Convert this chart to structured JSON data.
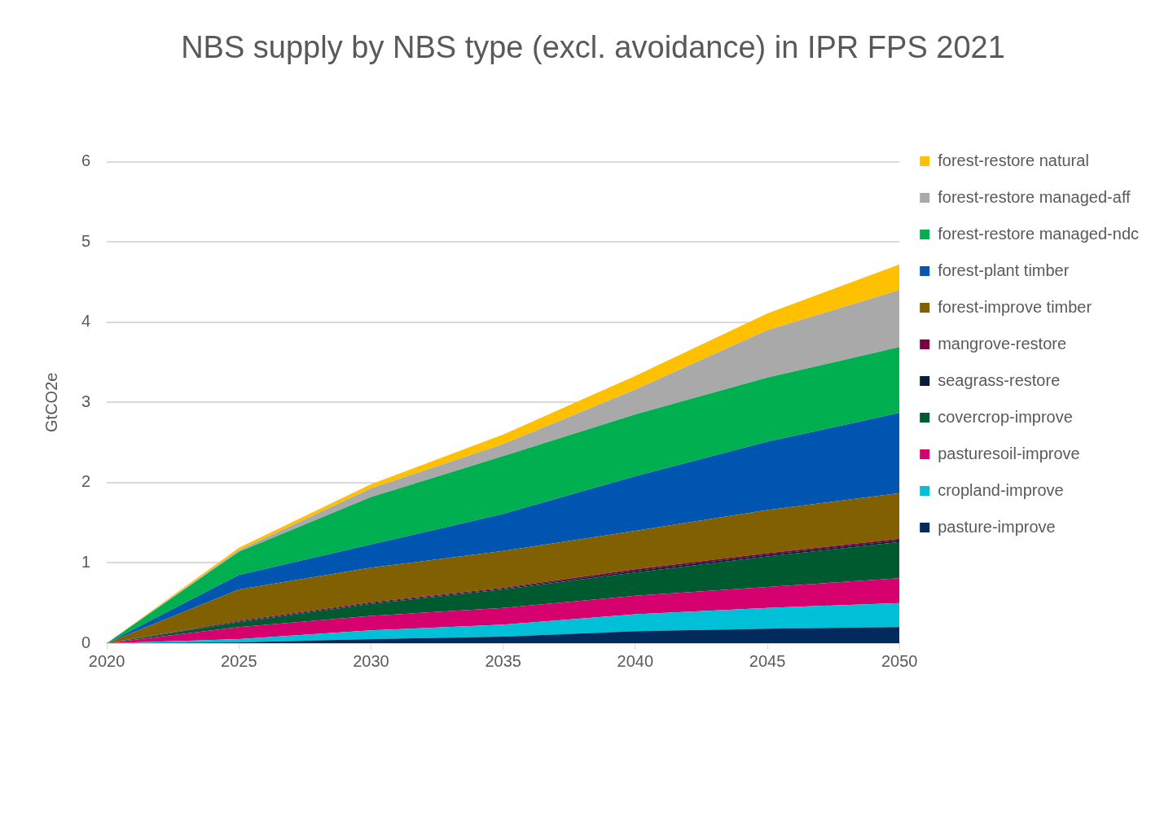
{
  "chart_data": {
    "type": "area",
    "title": "NBS supply by NBS type (excl. avoidance) in IPR FPS 2021",
    "ylabel": "GtCO2e",
    "stacked": true,
    "x": [
      2020,
      2025,
      2030,
      2035,
      2040,
      2045,
      2050
    ],
    "xlim": [
      2020,
      2050
    ],
    "xticks": [
      2020,
      2025,
      2030,
      2035,
      2040,
      2045,
      2050
    ],
    "ylim": [
      0,
      6
    ],
    "yticks": [
      0,
      1,
      2,
      3,
      4,
      5,
      6
    ],
    "grid": "y",
    "legend": "right",
    "marker": "none",
    "series": [
      {
        "name": "pasture-improve",
        "color": "#002b5c",
        "values": [
          0,
          0.01,
          0.05,
          0.08,
          0.15,
          0.18,
          0.2
        ]
      },
      {
        "name": "cropland-improve",
        "color": "#00c0d8",
        "values": [
          0,
          0.04,
          0.11,
          0.15,
          0.21,
          0.26,
          0.3
        ]
      },
      {
        "name": "pasturesoil-improve",
        "color": "#d6006f",
        "values": [
          0,
          0.15,
          0.18,
          0.21,
          0.23,
          0.26,
          0.31
        ]
      },
      {
        "name": "covercrop-improve",
        "color": "#005a30",
        "values": [
          0,
          0.06,
          0.15,
          0.23,
          0.29,
          0.38,
          0.45
        ]
      },
      {
        "name": "seagrass-restore",
        "color": "#0a1a3a",
        "values": [
          0,
          0.01,
          0.01,
          0.01,
          0.02,
          0.02,
          0.02
        ]
      },
      {
        "name": "mangrove-restore",
        "color": "#7a0040",
        "values": [
          0,
          0.01,
          0.01,
          0.01,
          0.02,
          0.02,
          0.02
        ]
      },
      {
        "name": "forest-improve timber",
        "color": "#806000",
        "values": [
          0,
          0.39,
          0.43,
          0.46,
          0.48,
          0.54,
          0.57
        ]
      },
      {
        "name": "forest-plant timber",
        "color": "#0055b0",
        "values": [
          0,
          0.18,
          0.29,
          0.46,
          0.68,
          0.85,
          1.0
        ]
      },
      {
        "name": "forest-restore managed-ndc",
        "color": "#00b050",
        "values": [
          0,
          0.29,
          0.59,
          0.72,
          0.77,
          0.8,
          0.82
        ]
      },
      {
        "name": "forest-restore managed-aff",
        "color": "#a9a9a9",
        "values": [
          0,
          0.02,
          0.11,
          0.15,
          0.31,
          0.59,
          0.71
        ]
      },
      {
        "name": "forest-restore natural",
        "color": "#ffc000",
        "values": [
          0,
          0.03,
          0.05,
          0.12,
          0.17,
          0.21,
          0.32
        ]
      }
    ]
  }
}
